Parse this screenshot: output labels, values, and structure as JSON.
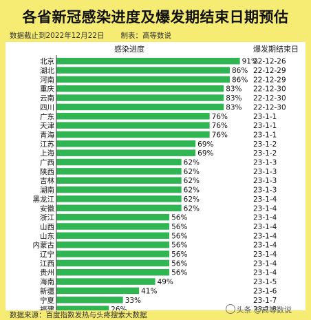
{
  "header": {
    "title": "各省新冠感染进度及爆发期结束日期预估",
    "cutoff": "数据截止到2022年12月22日",
    "maker": "制表：高等数说"
  },
  "footer": {
    "source": "数据来源：百度指数发热与头疼搜索大数据",
    "watermark": "头条 @高等数说"
  },
  "colors": {
    "bar": "#2fb552",
    "frame": "#f6ec73",
    "panel": "#ffffff"
  },
  "chart_data": {
    "type": "bar",
    "orientation": "horizontal",
    "xlabel": "感染进度",
    "end_date_header": "爆发期结束日",
    "xlim": [
      0,
      100
    ],
    "grid": false,
    "categories": [
      "北京",
      "湖北",
      "河南",
      "重庆",
      "云南",
      "四川",
      "广东",
      "天津",
      "青海",
      "江苏",
      "上海",
      "广西",
      "陕西",
      "吉林",
      "湖南",
      "黑龙江",
      "安徽",
      "浙江",
      "山西",
      "山东",
      "内蒙古",
      "辽宁",
      "江西",
      "贵州",
      "海南",
      "新疆",
      "宁夏",
      "福建"
    ],
    "values": [
      91,
      86,
      86,
      83,
      83,
      83,
      76,
      76,
      76,
      69,
      69,
      62,
      62,
      62,
      62,
      62,
      62,
      56,
      56,
      56,
      56,
      56,
      56,
      56,
      49,
      41,
      33,
      26
    ],
    "value_labels": [
      "91%",
      "86%",
      "86%",
      "83%",
      "83%",
      "83%",
      "76%",
      "76%",
      "76%",
      "69%",
      "69%",
      "62%",
      "62%",
      "62%",
      "62%",
      "62%",
      "62%",
      "56%",
      "56%",
      "56%",
      "56%",
      "56%",
      "56%",
      "56%",
      "49%",
      "41%",
      "33%",
      "26%"
    ],
    "end_dates": [
      "22-12-26",
      "22-12-29",
      "22-12-29",
      "22-12-30",
      "22-12-30",
      "22-12-30",
      "23-1-1",
      "23-1-1",
      "23-1-1",
      "23-1-2",
      "23-1-2",
      "23-1-3",
      "23-1-3",
      "23-1-3",
      "23-1-3",
      "23-1-4",
      "23-1-4",
      "23-1-4",
      "23-1-4",
      "23-1-4",
      "23-1-4",
      "23-1-4",
      "23-1-4",
      "23-1-4",
      "23-1-5",
      "23-1-6",
      "23-1-7",
      "23-1-8"
    ]
  }
}
